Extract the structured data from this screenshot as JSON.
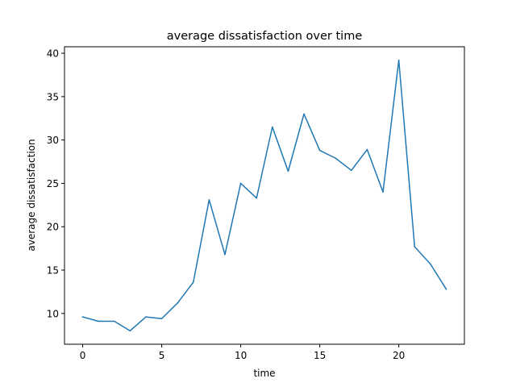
{
  "chart_data": {
    "type": "line",
    "title": "average dissatisfaction over time",
    "xlabel": "time",
    "ylabel": "average dissatisfaction",
    "xlim": [
      -1.15,
      24.15
    ],
    "ylim": [
      6.45,
      40.75
    ],
    "xticks": [
      0,
      5,
      10,
      15,
      20
    ],
    "yticks": [
      10,
      15,
      20,
      25,
      30,
      35,
      40
    ],
    "grid": false,
    "legend": false,
    "series": [
      {
        "color": "#1f77b4",
        "x": [
          0,
          1,
          2,
          3,
          4,
          5,
          6,
          7,
          8,
          9,
          10,
          11,
          12,
          13,
          14,
          15,
          16,
          17,
          18,
          19,
          20,
          21,
          22,
          23
        ],
        "values": [
          9.6,
          9.1,
          9.1,
          8.0,
          9.6,
          9.4,
          11.2,
          13.6,
          23.1,
          16.8,
          25.0,
          23.3,
          31.5,
          26.4,
          33.0,
          28.8,
          27.9,
          26.5,
          28.9,
          24.0,
          39.2,
          17.7,
          15.7,
          12.8
        ]
      }
    ]
  }
}
